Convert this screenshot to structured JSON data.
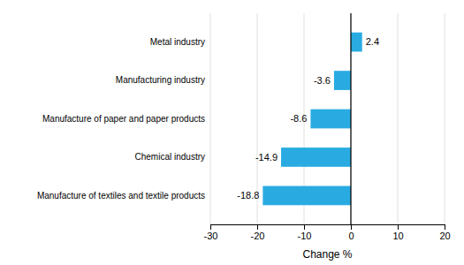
{
  "chart_data": {
    "type": "bar",
    "orientation": "horizontal",
    "categories": [
      "Manufacture of textiles and textile products",
      "Chemical industry",
      "Manufacture of paper and paper products",
      "Manufacturing industry",
      "Metal industry"
    ],
    "values": [
      -18.8,
      -14.9,
      -8.6,
      -3.6,
      2.4
    ],
    "color": "#29ABE2",
    "xlim": [
      -30,
      20
    ],
    "xticks": [
      -30,
      -20,
      -10,
      0,
      10,
      20
    ],
    "xlabel": "Change %",
    "grid": true,
    "data_labels": true
  }
}
